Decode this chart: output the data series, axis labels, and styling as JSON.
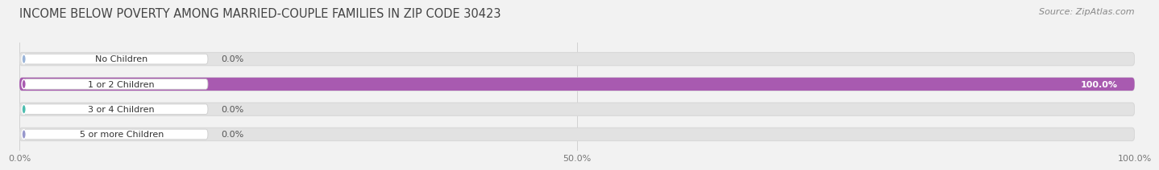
{
  "title": "INCOME BELOW POVERTY AMONG MARRIED-COUPLE FAMILIES IN ZIP CODE 30423",
  "source": "Source: ZipAtlas.com",
  "categories": [
    "No Children",
    "1 or 2 Children",
    "3 or 4 Children",
    "5 or more Children"
  ],
  "values": [
    0.0,
    100.0,
    0.0,
    0.0
  ],
  "bar_colors": [
    "#9ab4d8",
    "#a85ab0",
    "#4dbdaf",
    "#9898cc"
  ],
  "background_color": "#f2f2f2",
  "bar_bg_color": "#e2e2e2",
  "bar_border_color": "#d8d8d8",
  "xlim": [
    0,
    100
  ],
  "xticks": [
    0.0,
    50.0,
    100.0
  ],
  "xtick_labels": [
    "0.0%",
    "50.0%",
    "100.0%"
  ],
  "title_fontsize": 10.5,
  "source_fontsize": 8,
  "bar_label_fontsize": 8,
  "value_label_fontsize": 8,
  "figsize": [
    14.06,
    2.32
  ]
}
